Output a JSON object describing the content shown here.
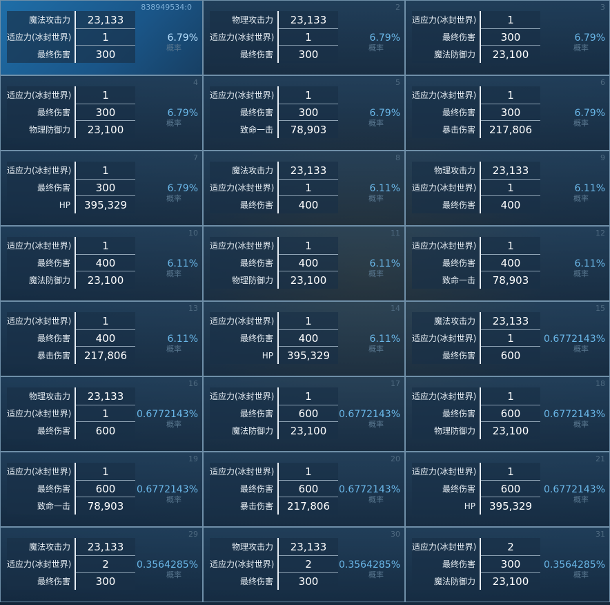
{
  "cells": [
    {
      "index": "838949534:0",
      "rows": [
        {
          "label": "魔法攻击力",
          "value": "23,133"
        },
        {
          "label": "适应力(冰封世界)",
          "value": "1"
        },
        {
          "label": "最终伤害",
          "value": "300"
        }
      ],
      "probability": "6.79%",
      "probability_label": "概率",
      "selected": true
    },
    {
      "index": "2",
      "rows": [
        {
          "label": "物理攻击力",
          "value": "23,133"
        },
        {
          "label": "适应力(冰封世界)",
          "value": "1"
        },
        {
          "label": "最终伤害",
          "value": "300"
        }
      ],
      "probability": "6.79%",
      "probability_label": "概率"
    },
    {
      "index": "3",
      "rows": [
        {
          "label": "适应力(冰封世界)",
          "value": "1"
        },
        {
          "label": "最终伤害",
          "value": "300"
        },
        {
          "label": "魔法防御力",
          "value": "23,100"
        }
      ],
      "probability": "6.79%",
      "probability_label": "概率"
    },
    {
      "index": "4",
      "rows": [
        {
          "label": "适应力(冰封世界)",
          "value": "1"
        },
        {
          "label": "最终伤害",
          "value": "300"
        },
        {
          "label": "物理防御力",
          "value": "23,100"
        }
      ],
      "probability": "6.79%",
      "probability_label": "概率"
    },
    {
      "index": "5",
      "rows": [
        {
          "label": "适应力(冰封世界)",
          "value": "1"
        },
        {
          "label": "最终伤害",
          "value": "300"
        },
        {
          "label": "致命一击",
          "value": "78,903"
        }
      ],
      "probability": "6.79%",
      "probability_label": "概率"
    },
    {
      "index": "6",
      "rows": [
        {
          "label": "适应力(冰封世界)",
          "value": "1"
        },
        {
          "label": "最终伤害",
          "value": "300"
        },
        {
          "label": "暴击伤害",
          "value": "217,806"
        }
      ],
      "probability": "6.79%",
      "probability_label": "概率"
    },
    {
      "index": "7",
      "rows": [
        {
          "label": "适应力(冰封世界)",
          "value": "1"
        },
        {
          "label": "最终伤害",
          "value": "300"
        },
        {
          "label": "HP",
          "value": "395,329"
        }
      ],
      "probability": "6.79%",
      "probability_label": "概率"
    },
    {
      "index": "8",
      "rows": [
        {
          "label": "魔法攻击力",
          "value": "23,133"
        },
        {
          "label": "适应力(冰封世界)",
          "value": "1"
        },
        {
          "label": "最终伤害",
          "value": "400"
        }
      ],
      "probability": "6.11%",
      "probability_label": "概率"
    },
    {
      "index": "9",
      "rows": [
        {
          "label": "物理攻击力",
          "value": "23,133"
        },
        {
          "label": "适应力(冰封世界)",
          "value": "1"
        },
        {
          "label": "最终伤害",
          "value": "400"
        }
      ],
      "probability": "6.11%",
      "probability_label": "概率"
    },
    {
      "index": "10",
      "rows": [
        {
          "label": "适应力(冰封世界)",
          "value": "1"
        },
        {
          "label": "最终伤害",
          "value": "400"
        },
        {
          "label": "魔法防御力",
          "value": "23,100"
        }
      ],
      "probability": "6.11%",
      "probability_label": "概率"
    },
    {
      "index": "11",
      "rows": [
        {
          "label": "适应力(冰封世界)",
          "value": "1"
        },
        {
          "label": "最终伤害",
          "value": "400"
        },
        {
          "label": "物理防御力",
          "value": "23,100"
        }
      ],
      "probability": "6.11%",
      "probability_label": "概率"
    },
    {
      "index": "12",
      "rows": [
        {
          "label": "适应力(冰封世界)",
          "value": "1"
        },
        {
          "label": "最终伤害",
          "value": "400"
        },
        {
          "label": "致命一击",
          "value": "78,903"
        }
      ],
      "probability": "6.11%",
      "probability_label": "概率"
    },
    {
      "index": "13",
      "rows": [
        {
          "label": "适应力(冰封世界)",
          "value": "1"
        },
        {
          "label": "最终伤害",
          "value": "400"
        },
        {
          "label": "暴击伤害",
          "value": "217,806"
        }
      ],
      "probability": "6.11%",
      "probability_label": "概率"
    },
    {
      "index": "14",
      "rows": [
        {
          "label": "适应力(冰封世界)",
          "value": "1"
        },
        {
          "label": "最终伤害",
          "value": "400"
        },
        {
          "label": "HP",
          "value": "395,329"
        }
      ],
      "probability": "6.11%",
      "probability_label": "概率"
    },
    {
      "index": "15",
      "rows": [
        {
          "label": "魔法攻击力",
          "value": "23,133"
        },
        {
          "label": "适应力(冰封世界)",
          "value": "1"
        },
        {
          "label": "最终伤害",
          "value": "600"
        }
      ],
      "probability": "0.6772143%",
      "probability_label": "概率"
    },
    {
      "index": "16",
      "rows": [
        {
          "label": "物理攻击力",
          "value": "23,133"
        },
        {
          "label": "适应力(冰封世界)",
          "value": "1"
        },
        {
          "label": "最终伤害",
          "value": "600"
        }
      ],
      "probability": "0.6772143%",
      "probability_label": "概率"
    },
    {
      "index": "17",
      "rows": [
        {
          "label": "适应力(冰封世界)",
          "value": "1"
        },
        {
          "label": "最终伤害",
          "value": "600"
        },
        {
          "label": "魔法防御力",
          "value": "23,100"
        }
      ],
      "probability": "0.6772143%",
      "probability_label": "概率"
    },
    {
      "index": "18",
      "rows": [
        {
          "label": "适应力(冰封世界)",
          "value": "1"
        },
        {
          "label": "最终伤害",
          "value": "600"
        },
        {
          "label": "物理防御力",
          "value": "23,100"
        }
      ],
      "probability": "0.6772143%",
      "probability_label": "概率"
    },
    {
      "index": "19",
      "rows": [
        {
          "label": "适应力(冰封世界)",
          "value": "1"
        },
        {
          "label": "最终伤害",
          "value": "600"
        },
        {
          "label": "致命一击",
          "value": "78,903"
        }
      ],
      "probability": "0.6772143%",
      "probability_label": "概率"
    },
    {
      "index": "20",
      "rows": [
        {
          "label": "适应力(冰封世界)",
          "value": "1"
        },
        {
          "label": "最终伤害",
          "value": "600"
        },
        {
          "label": "暴击伤害",
          "value": "217,806"
        }
      ],
      "probability": "0.6772143%",
      "probability_label": "概率"
    },
    {
      "index": "21",
      "rows": [
        {
          "label": "适应力(冰封世界)",
          "value": "1"
        },
        {
          "label": "最终伤害",
          "value": "600"
        },
        {
          "label": "HP",
          "value": "395,329"
        }
      ],
      "probability": "0.6772143%",
      "probability_label": "概率"
    },
    {
      "index": "29",
      "rows": [
        {
          "label": "魔法攻击力",
          "value": "23,133"
        },
        {
          "label": "适应力(冰封世界)",
          "value": "2"
        },
        {
          "label": "最终伤害",
          "value": "300"
        }
      ],
      "probability": "0.3564285%",
      "probability_label": "概率"
    },
    {
      "index": "30",
      "rows": [
        {
          "label": "物理攻击力",
          "value": "23,133"
        },
        {
          "label": "适应力(冰封世界)",
          "value": "2"
        },
        {
          "label": "最终伤害",
          "value": "300"
        }
      ],
      "probability": "0.3564285%",
      "probability_label": "概率"
    },
    {
      "index": "31",
      "rows": [
        {
          "label": "适应力(冰封世界)",
          "value": "2"
        },
        {
          "label": "最终伤害",
          "value": "300"
        },
        {
          "label": "魔法防御力",
          "value": "23,100"
        }
      ],
      "probability": "0.3564285%",
      "probability_label": "概率"
    }
  ]
}
